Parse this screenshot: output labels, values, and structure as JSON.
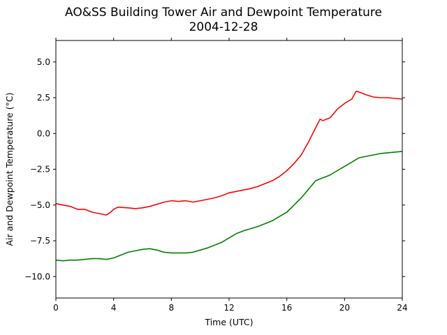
{
  "chart_data": {
    "type": "line",
    "title": "AO&SS Building Tower Air and Dewpoint Temperature",
    "subtitle": "2004-12-28",
    "xlabel": "Time (UTC)",
    "ylabel": "Air and Dewpoint Temperature (°C)",
    "xlim": [
      0,
      24
    ],
    "ylim": [
      -11.5,
      6.5
    ],
    "x_ticks": [
      0,
      4,
      8,
      12,
      16,
      20,
      24
    ],
    "x_tick_labels": [
      "0",
      "4",
      "8",
      "12",
      "16",
      "20",
      "24"
    ],
    "y_ticks": [
      5.0,
      2.5,
      0.0,
      -2.5,
      -5.0,
      -7.5,
      -10.0
    ],
    "y_tick_labels": [
      "5.0",
      "2.5",
      "0.0",
      "−2.5",
      "−5.0",
      "−7.5",
      "−10.0"
    ],
    "grid": false,
    "series": [
      {
        "color": "#ff0000",
        "x": [
          0,
          0.5,
          1,
          1.5,
          2,
          2.5,
          3,
          3.5,
          3.8,
          4,
          4.3,
          5,
          5.5,
          6,
          6.5,
          7,
          7.5,
          8,
          8.5,
          9,
          9.5,
          10,
          10.5,
          11,
          11.5,
          12,
          12.5,
          13,
          13.5,
          14,
          14.5,
          15,
          15.5,
          16,
          16.5,
          17,
          17.5,
          18,
          18.3,
          18.5,
          19,
          19.5,
          20,
          20.5,
          20.8,
          21,
          21.5,
          22,
          22.5,
          23,
          23.5,
          24
        ],
        "y": [
          -4.9,
          -5.0,
          -5.1,
          -5.3,
          -5.3,
          -5.5,
          -5.6,
          -5.7,
          -5.5,
          -5.3,
          -5.15,
          -5.2,
          -5.25,
          -5.2,
          -5.1,
          -4.95,
          -4.8,
          -4.7,
          -4.75,
          -4.7,
          -4.8,
          -4.7,
          -4.6,
          -4.5,
          -4.35,
          -4.15,
          -4.05,
          -3.95,
          -3.85,
          -3.7,
          -3.5,
          -3.3,
          -3.0,
          -2.6,
          -2.1,
          -1.5,
          -0.6,
          0.4,
          1.0,
          0.9,
          1.1,
          1.7,
          2.1,
          2.4,
          2.95,
          2.9,
          2.7,
          2.55,
          2.5,
          2.5,
          2.45,
          2.4
        ]
      },
      {
        "color": "#008000",
        "x": [
          0,
          0.5,
          1,
          1.5,
          2,
          2.5,
          3,
          3.5,
          4,
          4.5,
          5,
          5.5,
          6,
          6.5,
          7,
          7.5,
          8,
          8.5,
          9,
          9.5,
          10,
          10.5,
          11,
          11.5,
          12,
          12.5,
          13,
          13.5,
          14,
          14.5,
          15,
          15.5,
          16,
          16.5,
          17,
          17.5,
          18,
          18.5,
          19,
          19.5,
          20,
          20.5,
          21,
          21.5,
          22,
          22.5,
          23,
          23.5,
          24
        ],
        "y": [
          -8.85,
          -8.9,
          -8.85,
          -8.85,
          -8.8,
          -8.75,
          -8.75,
          -8.8,
          -8.7,
          -8.5,
          -8.3,
          -8.2,
          -8.1,
          -8.05,
          -8.15,
          -8.3,
          -8.35,
          -8.35,
          -8.35,
          -8.3,
          -8.15,
          -8.0,
          -7.8,
          -7.6,
          -7.3,
          -7.0,
          -6.8,
          -6.65,
          -6.5,
          -6.3,
          -6.1,
          -5.8,
          -5.5,
          -5.0,
          -4.5,
          -3.9,
          -3.3,
          -3.1,
          -2.9,
          -2.6,
          -2.3,
          -2.0,
          -1.7,
          -1.6,
          -1.5,
          -1.4,
          -1.35,
          -1.3,
          -1.25
        ]
      }
    ]
  }
}
